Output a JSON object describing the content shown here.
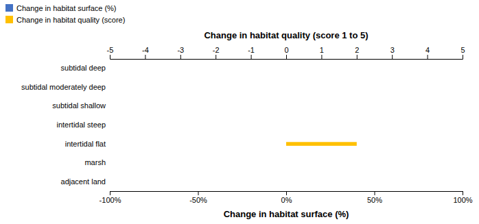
{
  "chart_data": {
    "type": "bar",
    "orientation": "horizontal",
    "categories": [
      "adjacent land",
      "marsh",
      "intertidal flat",
      "intertidal steep",
      "subtidal shallow",
      "subtidal moderately deep",
      "subtidal deep"
    ],
    "series": [
      {
        "name": "Change in habitat surface (%)",
        "color": "#4472C4",
        "values": [
          0,
          0,
          0,
          0,
          0,
          0,
          0
        ]
      },
      {
        "name": "Change in habitat quality (score)",
        "color": "#FFC000",
        "axis": "x2",
        "values": [
          0,
          0,
          2.0,
          0,
          0,
          0,
          0
        ]
      }
    ],
    "xlabel": "Change in habitat surface (%)",
    "x2label": "Change in habitat quality (score 1 to 5)",
    "xlim": [
      -100,
      100
    ],
    "xticks": [
      {
        "value": -100,
        "label": "-100%"
      },
      {
        "value": -50,
        "label": "-50%"
      },
      {
        "value": 0,
        "label": "0%"
      },
      {
        "value": 50,
        "label": "50%"
      },
      {
        "value": 100,
        "label": "100%"
      }
    ],
    "x2lim": [
      -5,
      5
    ],
    "x2ticks": [
      -5,
      -4,
      -3,
      -2,
      -1,
      0,
      1,
      2,
      3,
      4,
      5
    ],
    "grid": false,
    "legend": "upper left"
  }
}
